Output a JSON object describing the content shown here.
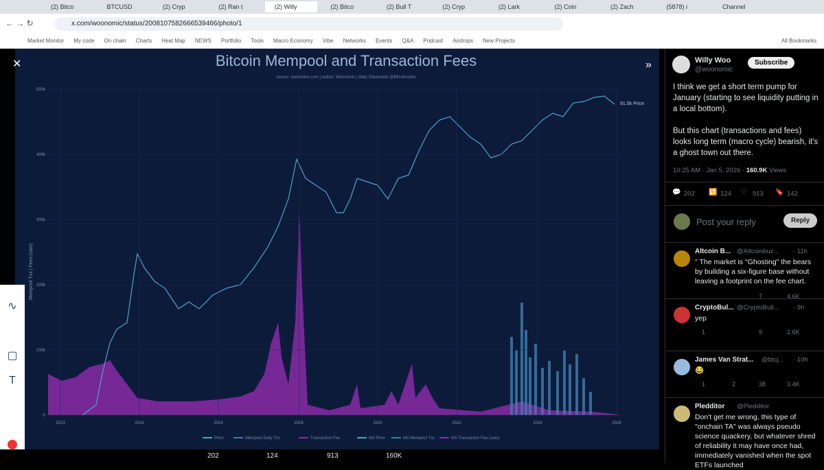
{
  "browser": {
    "tabs": [
      "(2) Bitco",
      "BTCUSD",
      "(2) Cryp",
      "(2) Ran t",
      "(2) Willy",
      "(2) Bitco",
      "(2) Bull T",
      "(2) Cryp",
      "(2) Lark",
      "(2) Coin",
      "(2) Zach",
      "(5878) i",
      "Channel"
    ],
    "url": "x.com/woonomic/status/2008107582666539466/photo/1",
    "bookmarks": [
      "Market Monitor",
      "My code",
      "On chain",
      "Charts",
      "Heat Map",
      "NEWS",
      "Portfolio",
      "Tools",
      "Macro Economy",
      "Vibe",
      "Networks",
      "Events",
      "Q&A",
      "Podcast",
      "Airdrops",
      "New Projects"
    ],
    "all_bookmarks": "All Bookmarks"
  },
  "photo": {
    "title": "Bitcoin Mempool and Transaction Fees",
    "subtitle": "source: woocharts.com | author: Woonomic | data: Glassnode @Bitcoinrocks",
    "y_label": "Mempool Txs | Fees (sats)",
    "y_ticks": [
      "500k",
      "400k",
      "300k",
      "200k",
      "100k",
      "0"
    ],
    "x_ticks": [
      "2013",
      "2014",
      "2016",
      "2018",
      "2020",
      "2022",
      "2024",
      "2026"
    ],
    "price_annotation": "91.5k Price",
    "legend": [
      "Price",
      "Mempool Daily Txs",
      "Transaction Fee",
      "MA Price",
      "MA Mempool Txs",
      "MA Transaction Fee (sats)"
    ],
    "stats": [
      "202",
      "124",
      "913",
      "160K"
    ]
  },
  "tweet": {
    "name": "Willy Woo",
    "handle": "@woonomic",
    "subscribe": "Subscribe",
    "paragraphs": [
      "I think we get a short term pump for January (starting to see liquidity putting in a local bottom).",
      "But this chart (transactions and fees) looks long term (macro cycle) bearish, it's a ghost town out there."
    ],
    "time": "10:25 AM · Jan 5, 2026 · ",
    "views": "160.9K",
    "views_label": "Views",
    "actions": [
      "202",
      "124",
      "913",
      "142"
    ],
    "reply_placeholder": "Post your reply",
    "reply_button": "Reply"
  },
  "replies": [
    {
      "name": "Altcoin B...",
      "handle": "@Altcoinbuz...",
      "time": "· 11h",
      "text": "\" The market is \"Ghosting\" the bears by building a six-figure base without leaving a footprint on the fee chart.",
      "likes": "7",
      "views": "4.6K"
    },
    {
      "name": "CryptoBul...",
      "handle": "@CryptoBull...",
      "time": "· 9h",
      "text": "yep",
      "replies": "1",
      "likes": "9",
      "views": "2.6K"
    },
    {
      "name": "James Van Strat...",
      "handle": "@btcj...",
      "time": "· 10h",
      "text": "😂",
      "replies": "1",
      "reposts": "2",
      "likes": "38",
      "views": "3.4K"
    },
    {
      "name": "Pledditor",
      "handle": "@Pledditor",
      "text": "Don't get me wrong, this type of \"onchain TA\" was always pseudo science quackery, but whatever shred of reliability it may have once had, immediately vanished when the spot ETFs launched"
    }
  ]
}
